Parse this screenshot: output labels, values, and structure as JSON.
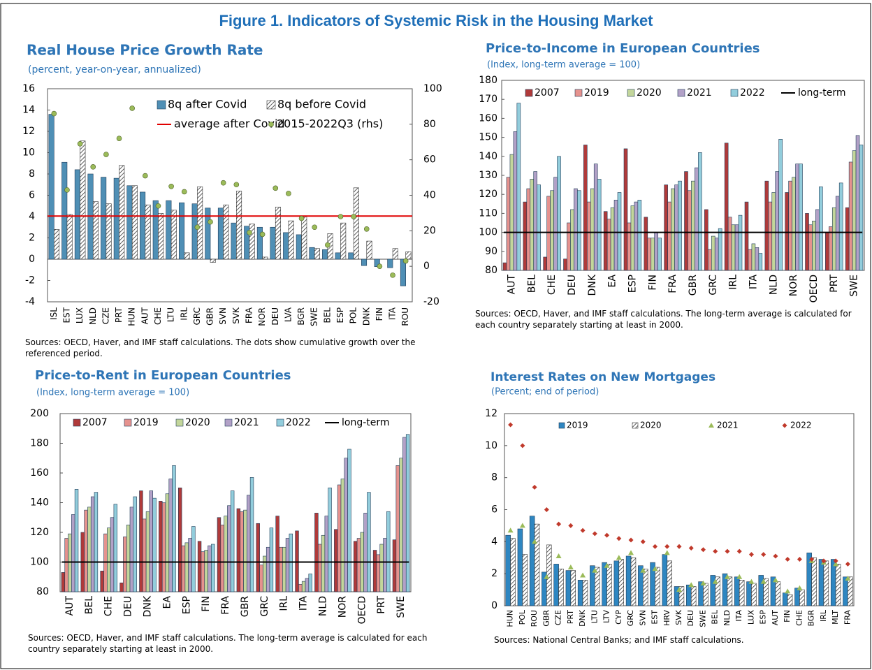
{
  "title": "Figure 1. Indicators of Systemic Risk in the Housing Market",
  "chart_data": [
    {
      "type": "bar",
      "title": "Real House Price Growth Rate",
      "subtitle": "(percent, year-on-year, annualized)",
      "note": "Sources: OECD, Haver, and IMF staff calculations. The dots show cumulative growth over the referenced period.",
      "categories": [
        "ISL",
        "EST",
        "LUX",
        "NLD",
        "CZE",
        "PRT",
        "HUN",
        "AUT",
        "CHE",
        "LTU",
        "IRL",
        "GRC",
        "GBR",
        "SVN",
        "SVK",
        "FRA",
        "NOR",
        "DEU",
        "LVA",
        "BGR",
        "SWE",
        "BEL",
        "ESP",
        "POL",
        "DNK",
        "FIN",
        "ITA",
        "ROU"
      ],
      "ylim": [
        -4,
        16
      ],
      "yticks": [
        -4,
        -2,
        0,
        2,
        4,
        6,
        8,
        10,
        12,
        14,
        16
      ],
      "y2lim": [
        -20,
        100
      ],
      "y2ticks": [
        -20,
        0,
        20,
        40,
        60,
        80,
        100
      ],
      "series": [
        {
          "name": "8q after Covid",
          "kind": "bar",
          "color": "#4f8fb5",
          "values": [
            13.6,
            9.1,
            8.4,
            8.0,
            7.7,
            7.6,
            6.9,
            6.3,
            5.5,
            5.5,
            5.3,
            5.2,
            4.8,
            4.8,
            3.4,
            3.1,
            3.0,
            3.0,
            2.5,
            2.3,
            1.1,
            0.9,
            0.6,
            0.6,
            -0.6,
            -0.7,
            -0.8,
            -2.5
          ]
        },
        {
          "name": "8q before Covid",
          "kind": "hatched-bar",
          "color": "#333333",
          "values": [
            2.8,
            4.2,
            11.1,
            5.4,
            5.2,
            8.8,
            6.9,
            5.1,
            4.3,
            4.6,
            0.6,
            6.8,
            -0.3,
            5.1,
            6.4,
            3.3,
            0.2,
            4.9,
            3.6,
            4.0,
            1.0,
            2.4,
            3.4,
            6.7,
            1.7,
            0.0,
            1.0,
            0.7
          ]
        },
        {
          "name": "average after Covid",
          "kind": "hline",
          "color": "#e00000",
          "value": 4.05
        },
        {
          "name": "2015-2022Q3 (rhs)",
          "kind": "scatter",
          "marker": "circle",
          "axis": "y2",
          "color": "#9bbb59",
          "values": [
            86,
            43,
            69,
            56,
            63,
            72,
            89,
            51,
            34,
            45,
            42,
            22,
            25,
            47,
            46,
            19,
            18,
            44,
            41,
            27,
            22,
            12,
            28,
            28,
            21,
            0,
            -5,
            3
          ]
        }
      ]
    },
    {
      "type": "bar",
      "title": "Price-to-Income in European Countries",
      "subtitle": "(Index, long-term average = 100)",
      "note": "Sources: OECD, Haver, and IMF staff calculations. The long-term average is calculated for each country separately starting at least in 2000.",
      "categories": [
        "AUT",
        "BEL",
        "CHE",
        "DEU",
        "DNK",
        "EA",
        "ESP",
        "FIN",
        "FRA",
        "GBR",
        "GRC",
        "IRL",
        "ITA",
        "NLD",
        "NOR",
        "OECD",
        "PRT",
        "SWE"
      ],
      "ylim": [
        80,
        180
      ],
      "yticks": [
        80,
        90,
        100,
        110,
        120,
        130,
        140,
        150,
        160,
        170,
        180
      ],
      "series": [
        {
          "name": "2007",
          "kind": "bar",
          "color": "#b03a3a",
          "values": [
            84,
            116,
            87,
            86,
            146,
            111,
            144,
            108,
            125,
            132,
            112,
            147,
            116,
            127,
            121,
            110,
            100,
            113
          ]
        },
        {
          "name": "2019",
          "kind": "bar",
          "color": "#e6928e",
          "values": [
            129,
            123,
            119,
            105,
            116,
            107,
            105,
            97,
            116,
            122,
            91,
            108,
            91,
            116,
            127,
            104,
            103,
            137
          ]
        },
        {
          "name": "2020",
          "kind": "bar",
          "color": "#c3d69b",
          "values": [
            141,
            128,
            122,
            112,
            123,
            113,
            114,
            97,
            123,
            127,
            98,
            104,
            94,
            121,
            129,
            106,
            113,
            143
          ]
        },
        {
          "name": "2021",
          "kind": "bar",
          "color": "#b2a1c7",
          "values": [
            153,
            132,
            129,
            123,
            136,
            117,
            116,
            100,
            125,
            134,
            97,
            104,
            92,
            132,
            136,
            112,
            119,
            151
          ]
        },
        {
          "name": "2022",
          "kind": "bar",
          "color": "#92cddc",
          "values": [
            168,
            125,
            140,
            122,
            128,
            121,
            117,
            97,
            127,
            142,
            102,
            109,
            89,
            149,
            136,
            124,
            126,
            146
          ]
        },
        {
          "name": "long-term",
          "kind": "hline",
          "color": "#000000",
          "value": 100
        }
      ]
    },
    {
      "type": "bar",
      "title": "Price-to-Rent in European Countries",
      "subtitle": "(Index, long-term average = 100)",
      "note": "Sources: OECD, Haver, and IMF staff calculations. The long-term average is calculated for each country separately starting at least in 2000.",
      "categories": [
        "AUT",
        "BEL",
        "CHE",
        "DEU",
        "DNK",
        "EA",
        "ESP",
        "FIN",
        "FRA",
        "GBR",
        "GRC",
        "IRL",
        "ITA",
        "NLD",
        "NOR",
        "OECD",
        "PRT",
        "SWE"
      ],
      "ylim": [
        80,
        200
      ],
      "yticks": [
        80,
        100,
        120,
        140,
        160,
        180,
        200
      ],
      "series": [
        {
          "name": "2007",
          "kind": "bar",
          "color": "#b03a3a",
          "values": [
            93,
            120,
            94,
            86,
            148,
            141,
            150,
            114,
            130,
            136,
            126,
            131,
            121,
            133,
            122,
            114,
            108,
            115
          ]
        },
        {
          "name": "2019",
          "kind": "bar",
          "color": "#e6928e",
          "values": [
            116,
            135,
            119,
            117,
            129,
            140,
            111,
            107,
            125,
            134,
            98,
            110,
            85,
            112,
            152,
            116,
            105,
            165
          ]
        },
        {
          "name": "2020",
          "kind": "bar",
          "color": "#c3d69b",
          "values": [
            119,
            137,
            123,
            125,
            134,
            146,
            113,
            108,
            131,
            135,
            104,
            110,
            87,
            118,
            156,
            120,
            112,
            170
          ]
        },
        {
          "name": "2021",
          "kind": "bar",
          "color": "#b2a1c7",
          "values": [
            132,
            144,
            130,
            137,
            148,
            156,
            116,
            111,
            138,
            145,
            110,
            116,
            89,
            131,
            170,
            133,
            116,
            184
          ]
        },
        {
          "name": "2022",
          "kind": "bar",
          "color": "#92cddc",
          "values": [
            149,
            147,
            139,
            144,
            143,
            165,
            124,
            112,
            148,
            157,
            123,
            119,
            92,
            150,
            176,
            147,
            134,
            186
          ]
        },
        {
          "name": "long-term",
          "kind": "hline",
          "color": "#000000",
          "value": 100
        }
      ]
    },
    {
      "type": "bar",
      "title": "Interest Rates on New Mortgages",
      "subtitle": "(Percent; end of period)",
      "note": "Sources: National Central Banks; and IMF staff calculations.",
      "categories": [
        "HUN",
        "POL",
        "ROU",
        "GBR",
        "CZE",
        "PRT",
        "DNK",
        "LTU",
        "LTV",
        "CYP",
        "GRC",
        "SVN",
        "EST",
        "HRV",
        "SVK",
        "DEU",
        "SWE",
        "BEL",
        "NLD",
        "ITA",
        "LUX",
        "ESP",
        "AUT",
        "FIN",
        "CHE",
        "BGR",
        "IRL",
        "MLT",
        "FRA"
      ],
      "ylim": [
        0,
        12
      ],
      "yticks": [
        0,
        2,
        4,
        6,
        8,
        10,
        12
      ],
      "series": [
        {
          "name": "2019",
          "kind": "bar",
          "color": "#2e86c1",
          "values": [
            4.4,
            4.8,
            5.6,
            2.1,
            2.6,
            2.2,
            1.6,
            2.5,
            2.7,
            2.8,
            3.1,
            2.5,
            2.7,
            3.2,
            1.2,
            1.3,
            1.5,
            1.9,
            2.0,
            1.8,
            1.5,
            1.9,
            1.8,
            0.8,
            1.1,
            3.3,
            2.9,
            2.9,
            1.8
          ]
        },
        {
          "name": "2020",
          "kind": "hatched-bar",
          "color": "#333333",
          "values": [
            4.2,
            3.2,
            5.1,
            3.8,
            2.3,
            2.2,
            1.6,
            2.4,
            2.6,
            2.9,
            3.0,
            2.3,
            2.4,
            2.8,
            1.2,
            1.2,
            1.4,
            1.8,
            1.8,
            1.6,
            1.4,
            1.7,
            1.5,
            0.7,
            1.0,
            3.0,
            2.8,
            2.6,
            1.8
          ]
        },
        {
          "name": "2021",
          "kind": "scatter",
          "marker": "triangle",
          "color": "#9bbb59",
          "values": [
            4.7,
            5.0,
            4.0,
            1.8,
            3.1,
            2.4,
            1.9,
            2.2,
            2.5,
            3.0,
            3.3,
            2.2,
            2.3,
            3.3,
            1.0,
            1.3,
            1.4,
            1.5,
            1.8,
            1.8,
            1.5,
            1.5,
            1.6,
            0.9,
            1.1,
            2.8,
            2.7,
            2.6,
            1.7
          ]
        },
        {
          "name": "2022",
          "kind": "scatter",
          "marker": "diamond",
          "color": "#c0392b",
          "values": [
            11.3,
            10.0,
            7.4,
            6.0,
            5.1,
            5.0,
            4.7,
            4.5,
            4.4,
            4.2,
            4.1,
            4.0,
            3.7,
            3.7,
            3.7,
            3.6,
            3.5,
            3.4,
            3.4,
            3.4,
            3.2,
            3.2,
            3.1,
            2.9,
            2.9,
            2.9,
            2.8,
            2.8,
            2.6
          ]
        }
      ]
    }
  ]
}
